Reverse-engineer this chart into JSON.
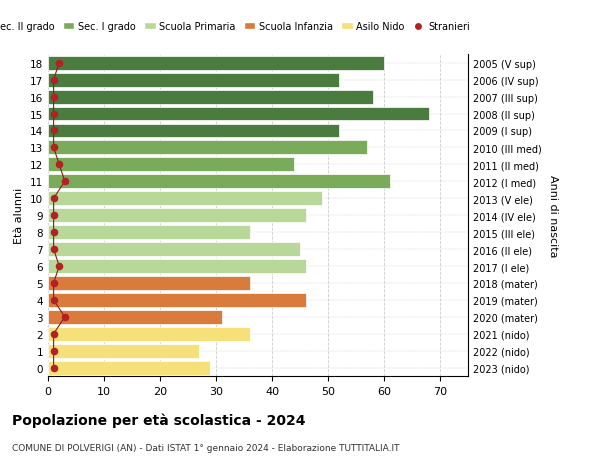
{
  "ages": [
    18,
    17,
    16,
    15,
    14,
    13,
    12,
    11,
    10,
    9,
    8,
    7,
    6,
    5,
    4,
    3,
    2,
    1,
    0
  ],
  "right_labels": [
    "2005 (V sup)",
    "2006 (IV sup)",
    "2007 (III sup)",
    "2008 (II sup)",
    "2009 (I sup)",
    "2010 (III med)",
    "2011 (II med)",
    "2012 (I med)",
    "2013 (V ele)",
    "2014 (IV ele)",
    "2015 (III ele)",
    "2016 (II ele)",
    "2017 (I ele)",
    "2018 (mater)",
    "2019 (mater)",
    "2020 (mater)",
    "2021 (nido)",
    "2022 (nido)",
    "2023 (nido)"
  ],
  "bar_values": [
    60,
    52,
    58,
    68,
    52,
    57,
    44,
    61,
    49,
    46,
    36,
    45,
    46,
    36,
    46,
    31,
    36,
    27,
    29
  ],
  "stranieri_values": [
    2,
    1,
    1,
    1,
    1,
    1,
    2,
    3,
    1,
    1,
    1,
    1,
    2,
    1,
    1,
    3,
    1,
    1,
    1
  ],
  "bar_colors": [
    "#4a7c3f",
    "#4a7c3f",
    "#4a7c3f",
    "#4a7c3f",
    "#4a7c3f",
    "#7aab5a",
    "#7aab5a",
    "#7aab5a",
    "#b8d89a",
    "#b8d89a",
    "#b8d89a",
    "#b8d89a",
    "#b8d89a",
    "#d97b3a",
    "#d97b3a",
    "#d97b3a",
    "#f5e07a",
    "#f5e07a",
    "#f5e07a"
  ],
  "legend_labels": [
    "Sec. II grado",
    "Sec. I grado",
    "Scuola Primaria",
    "Scuola Infanzia",
    "Asilo Nido",
    "Stranieri"
  ],
  "legend_colors": [
    "#4a7c3f",
    "#7aab5a",
    "#b8d89a",
    "#d97b3a",
    "#f5e07a",
    "#b22222"
  ],
  "ylabel": "Età alunni",
  "right_ylabel": "Anni di nascita",
  "title": "Popolazione per età scolastica - 2024",
  "subtitle": "COMUNE DI POLVERIGI (AN) - Dati ISTAT 1° gennaio 2024 - Elaborazione TUTTITALIA.IT",
  "xlim": [
    0,
    75
  ],
  "xticks": [
    0,
    10,
    20,
    30,
    40,
    50,
    60,
    70
  ],
  "bg_color": "#ffffff",
  "grid_color": "#cccccc"
}
